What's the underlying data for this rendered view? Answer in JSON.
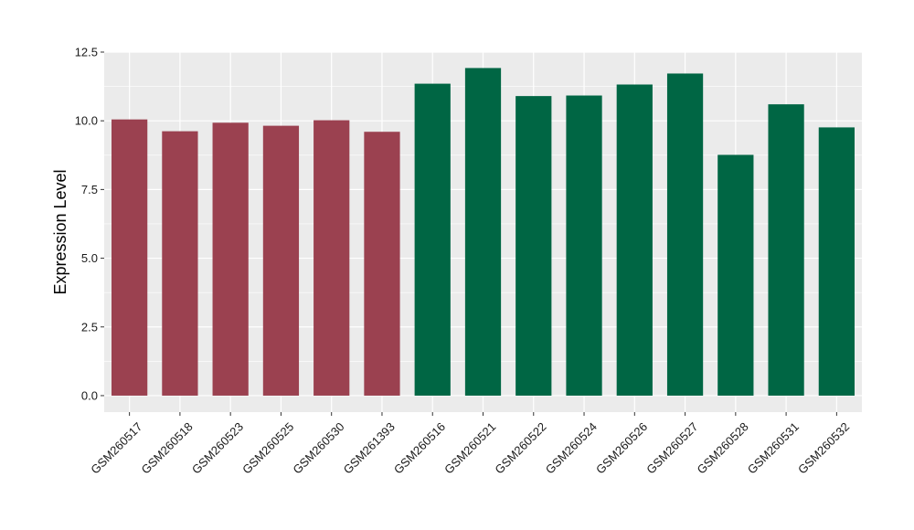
{
  "chart_data": {
    "type": "bar",
    "title": "",
    "xlabel": "",
    "ylabel": "Expression Level",
    "ylim": [
      -0.6,
      12.5
    ],
    "yticks": [
      0.0,
      2.5,
      5.0,
      7.5,
      10.0,
      12.5
    ],
    "ytick_labels": [
      "0.0",
      "2.5",
      "5.0",
      "7.5",
      "10.0",
      "12.5"
    ],
    "grid": true,
    "legend": "none",
    "categories": [
      "GSM260517",
      "GSM260518",
      "GSM260523",
      "GSM260525",
      "GSM260530",
      "GSM261393",
      "GSM260516",
      "GSM260521",
      "GSM260522",
      "GSM260524",
      "GSM260526",
      "GSM260527",
      "GSM260528",
      "GSM260531",
      "GSM260532"
    ],
    "values": [
      10.05,
      9.62,
      9.93,
      9.82,
      10.02,
      9.6,
      11.35,
      11.92,
      10.9,
      10.92,
      11.32,
      11.72,
      8.76,
      10.6,
      9.76
    ],
    "groups": [
      0,
      0,
      0,
      0,
      0,
      0,
      1,
      1,
      1,
      1,
      1,
      1,
      1,
      1,
      1
    ],
    "group_colors": [
      "#9b4150",
      "#006644"
    ],
    "panel_background": "#ebebeb",
    "grid_color": "#ffffff"
  }
}
